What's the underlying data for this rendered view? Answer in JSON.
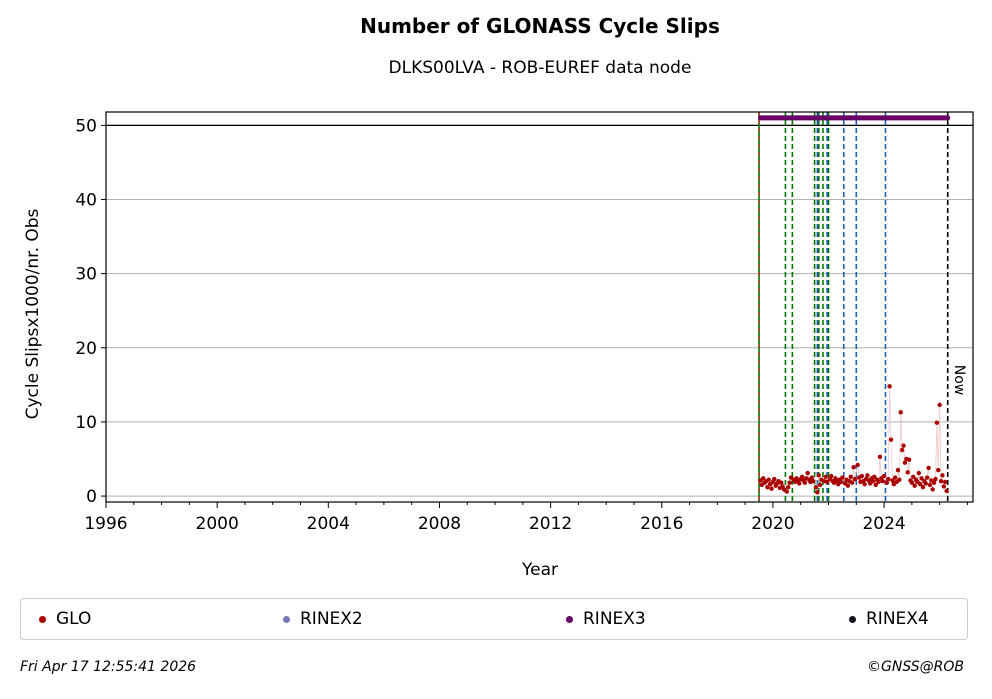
{
  "chart_data": {
    "type": "scatter",
    "title": "Number of GLONASS Cycle Slips",
    "subtitle": "DLKS00LVA - ROB-EUREF data node",
    "xlabel": "Year",
    "ylabel": "Cycle Slipsx1000/nr. Obs",
    "xlim": [
      1996,
      2027.2
    ],
    "ylim": [
      -0.8,
      51.8
    ],
    "x_ticks": [
      "1996",
      "2000",
      "2004",
      "2008",
      "2012",
      "2016",
      "2020",
      "2024"
    ],
    "y_ticks": [
      "0",
      "10",
      "20",
      "30",
      "40",
      "50"
    ],
    "grid": "horizontal",
    "reference_line_y": 50,
    "now_label": "Now",
    "now_x": 2026.29,
    "start_line_x": 2019.5,
    "green_dashed_lines_x": [
      2020.45,
      2020.7,
      2021.5,
      2021.65,
      2021.8,
      2022.0
    ],
    "blue_dashed_lines_x": [
      2021.6,
      2021.95,
      2022.55,
      2023.0,
      2024.05
    ],
    "series": [
      {
        "name": "GLO",
        "color": "#aa0000",
        "points": [
          [
            2019.55,
            2.1
          ],
          [
            2019.6,
            1.5
          ],
          [
            2019.65,
            2.4
          ],
          [
            2019.7,
            1.8
          ],
          [
            2019.75,
            2.0
          ],
          [
            2019.8,
            1.2
          ],
          [
            2019.85,
            2.2
          ],
          [
            2019.9,
            1.6
          ],
          [
            2019.95,
            1.0
          ],
          [
            2020.0,
            1.9
          ],
          [
            2020.05,
            2.3
          ],
          [
            2020.1,
            1.4
          ],
          [
            2020.15,
            1.7
          ],
          [
            2020.2,
            2.0
          ],
          [
            2020.25,
            1.1
          ],
          [
            2020.3,
            1.8
          ],
          [
            2020.35,
            1.3
          ],
          [
            2020.4,
            0.9
          ],
          [
            2020.5,
            0.6
          ],
          [
            2020.55,
            1.2
          ],
          [
            2020.6,
            1.8
          ],
          [
            2020.65,
            2.5
          ],
          [
            2020.75,
            2.2
          ],
          [
            2020.8,
            1.9
          ],
          [
            2020.85,
            2.4
          ],
          [
            2020.9,
            2.0
          ],
          [
            2020.95,
            1.7
          ],
          [
            2021.0,
            2.3
          ],
          [
            2021.05,
            2.6
          ],
          [
            2021.1,
            2.1
          ],
          [
            2021.15,
            1.8
          ],
          [
            2021.2,
            2.4
          ],
          [
            2021.25,
            3.1
          ],
          [
            2021.3,
            2.2
          ],
          [
            2021.35,
            1.9
          ],
          [
            2021.4,
            2.5
          ],
          [
            2021.45,
            2.0
          ],
          [
            2021.55,
            1.2
          ],
          [
            2021.6,
            0.5
          ],
          [
            2021.65,
            2.8
          ],
          [
            2021.7,
            1.5
          ],
          [
            2021.75,
            2.2
          ],
          [
            2021.85,
            2.0
          ],
          [
            2021.9,
            2.6
          ],
          [
            2021.95,
            1.9
          ],
          [
            2022.05,
            2.3
          ],
          [
            2022.1,
            2.7
          ],
          [
            2022.15,
            2.0
          ],
          [
            2022.2,
            1.8
          ],
          [
            2022.25,
            2.4
          ],
          [
            2022.3,
            2.1
          ],
          [
            2022.35,
            1.6
          ],
          [
            2022.4,
            2.2
          ],
          [
            2022.45,
            1.9
          ],
          [
            2022.5,
            2.5
          ],
          [
            2022.6,
            1.7
          ],
          [
            2022.65,
            2.2
          ],
          [
            2022.7,
            1.4
          ],
          [
            2022.75,
            2.0
          ],
          [
            2022.8,
            2.6
          ],
          [
            2022.85,
            1.8
          ],
          [
            2022.9,
            3.9
          ],
          [
            2022.95,
            2.3
          ],
          [
            2023.05,
            4.2
          ],
          [
            2023.1,
            2.5
          ],
          [
            2023.15,
            1.9
          ],
          [
            2023.2,
            2.7
          ],
          [
            2023.25,
            2.0
          ],
          [
            2023.3,
            1.6
          ],
          [
            2023.35,
            2.3
          ],
          [
            2023.4,
            2.8
          ],
          [
            2023.45,
            2.1
          ],
          [
            2023.5,
            1.7
          ],
          [
            2023.55,
            2.4
          ],
          [
            2023.6,
            2.0
          ],
          [
            2023.65,
            2.6
          ],
          [
            2023.7,
            1.5
          ],
          [
            2023.75,
            2.2
          ],
          [
            2023.8,
            1.9
          ],
          [
            2023.85,
            5.3
          ],
          [
            2023.9,
            2.4
          ],
          [
            2023.95,
            2.0
          ],
          [
            2024.0,
            2.7
          ],
          [
            2024.1,
            1.8
          ],
          [
            2024.15,
            2.3
          ],
          [
            2024.2,
            14.8
          ],
          [
            2024.25,
            7.6
          ],
          [
            2024.3,
            2.1
          ],
          [
            2024.35,
            1.6
          ],
          [
            2024.4,
            2.5
          ],
          [
            2024.45,
            1.9
          ],
          [
            2024.5,
            3.5
          ],
          [
            2024.55,
            2.2
          ],
          [
            2024.6,
            11.3
          ],
          [
            2024.65,
            6.2
          ],
          [
            2024.7,
            6.8
          ],
          [
            2024.75,
            4.5
          ],
          [
            2024.8,
            5.0
          ],
          [
            2024.85,
            3.2
          ],
          [
            2024.9,
            4.9
          ],
          [
            2024.95,
            2.1
          ],
          [
            2025.0,
            1.8
          ],
          [
            2025.05,
            2.6
          ],
          [
            2025.1,
            1.4
          ],
          [
            2025.15,
            2.2
          ],
          [
            2025.2,
            1.9
          ],
          [
            2025.25,
            3.1
          ],
          [
            2025.3,
            1.6
          ],
          [
            2025.35,
            2.4
          ],
          [
            2025.4,
            1.2
          ],
          [
            2025.45,
            2.0
          ],
          [
            2025.5,
            1.7
          ],
          [
            2025.55,
            2.5
          ],
          [
            2025.6,
            3.8
          ],
          [
            2025.65,
            1.5
          ],
          [
            2025.7,
            2.1
          ],
          [
            2025.75,
            0.9
          ],
          [
            2025.8,
            1.8
          ],
          [
            2025.85,
            2.3
          ],
          [
            2025.9,
            9.9
          ],
          [
            2025.95,
            3.5
          ],
          [
            2026.0,
            12.3
          ],
          [
            2026.05,
            2.0
          ],
          [
            2026.1,
            2.8
          ],
          [
            2026.15,
            1.3
          ],
          [
            2026.2,
            1.9
          ],
          [
            2026.25,
            0.7
          ]
        ]
      },
      {
        "name": "RINEX2",
        "color": "#7777bb",
        "points": []
      },
      {
        "name": "RINEX3",
        "color": "#660066",
        "x_range": [
          2019.55,
          2026.29
        ],
        "y": 51
      },
      {
        "name": "RINEX4",
        "color": "#111122",
        "points": []
      }
    ]
  },
  "footer": {
    "date": "Fri Apr 17 12:55:41 2026",
    "credit": "©GNSS@ROB"
  }
}
